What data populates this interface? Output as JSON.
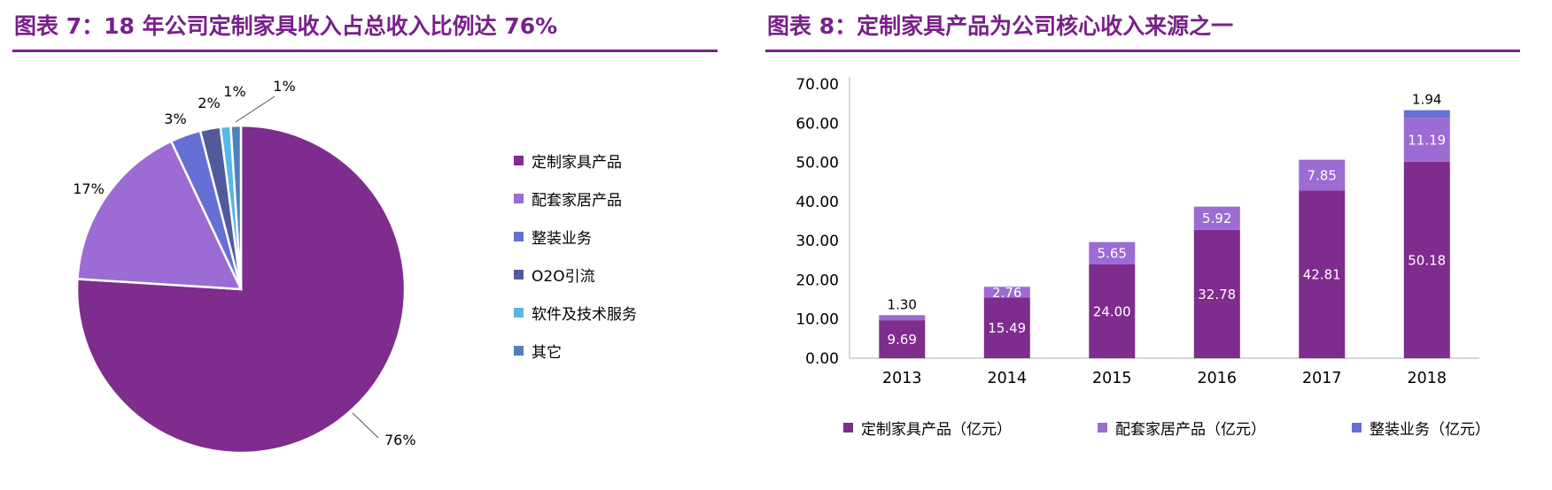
{
  "chart_data": [
    {
      "type": "pie",
      "title": "图表 7：18 年公司定制家具收入占总收入比例达 76%",
      "labels": [
        "定制家具产品",
        "配套家居产品",
        "整装业务",
        "O2O引流",
        "软件及技术服务",
        "其它"
      ],
      "values": [
        76,
        17,
        3,
        2,
        1,
        1
      ],
      "unit": "%",
      "colors": [
        "#7E2C8D",
        "#9C6BD3",
        "#6670D4",
        "#525A9E",
        "#57B7E8",
        "#4E81BD"
      ],
      "legend_position": "right",
      "start_angle_deg": 0,
      "direction": "clockwise",
      "slice_border_color": "#ffffff"
    },
    {
      "type": "bar",
      "stacked": true,
      "title": "图表 8：定制家具产品为公司核心收入来源之一",
      "categories": [
        "2013",
        "2014",
        "2015",
        "2016",
        "2017",
        "2018"
      ],
      "series": [
        {
          "name": "定制家具产品（亿元）",
          "color": "#7E2C8D",
          "values": [
            9.69,
            15.49,
            24.0,
            32.78,
            42.81,
            50.18
          ]
        },
        {
          "name": "配套家居产品（亿元）",
          "color": "#9C6BD3",
          "values": [
            1.3,
            2.76,
            5.65,
            5.92,
            7.85,
            11.19
          ]
        },
        {
          "name": "整装业务（亿元）",
          "color": "#6670D4",
          "values": [
            null,
            null,
            null,
            null,
            null,
            1.94
          ]
        }
      ],
      "xlabel": "",
      "ylabel": "",
      "ylim": [
        0,
        70
      ],
      "ytick_step": 10,
      "ytick_labels": [
        "0.00",
        "10.00",
        "20.00",
        "30.00",
        "40.00",
        "50.00",
        "60.00",
        "70.00"
      ],
      "grid": false,
      "legend_position": "bottom",
      "data_labels": true,
      "axis_color": "#BFBFBF"
    }
  ],
  "theme": {
    "title_color": "#79208A",
    "rule_color": "#79208A",
    "label_color": "#000000",
    "inside_label_color": "#ffffff"
  }
}
